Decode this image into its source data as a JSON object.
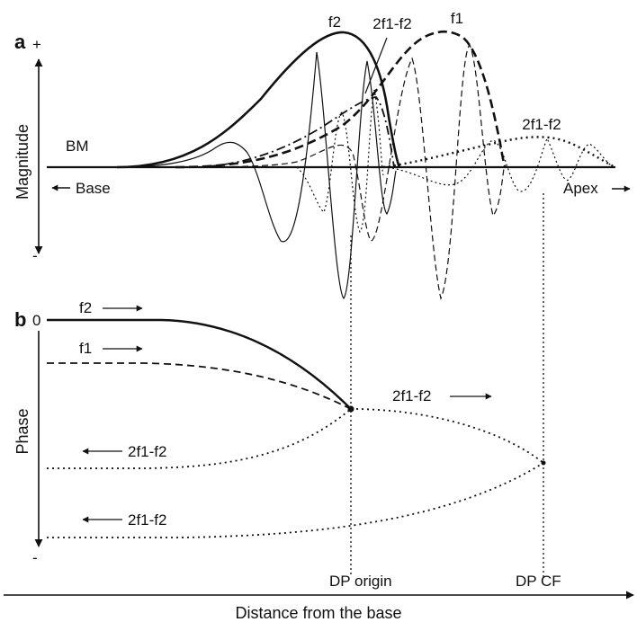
{
  "figure": {
    "panel_a": {
      "label": "a",
      "y_axis_label": "Magnitude",
      "plus_sign": "+",
      "minus_sign": "-",
      "bm_label": "BM",
      "base_label": "Base",
      "apex_label": "Apex",
      "curve_labels": {
        "f2": "f2",
        "f1": "f1",
        "dp_origin_wave": "2f1-f2",
        "dp_cf_wave": "2f1-f2"
      }
    },
    "panel_b": {
      "label": "b",
      "y_axis_label": "Phase",
      "zero_label": "0",
      "minus_sign": "-",
      "curve_labels": {
        "f2": "f2",
        "f1": "f1",
        "dp_forward": "2f1-f2",
        "dp_reverse_1": "2f1-f2",
        "dp_reverse_2": "2f1-f2"
      },
      "markers": {
        "dp_origin": "DP origin",
        "dp_cf": "DP CF"
      }
    },
    "x_axis_label": "Distance from the base",
    "colors": {
      "ink": "#111111",
      "background": "#ffffff"
    }
  }
}
